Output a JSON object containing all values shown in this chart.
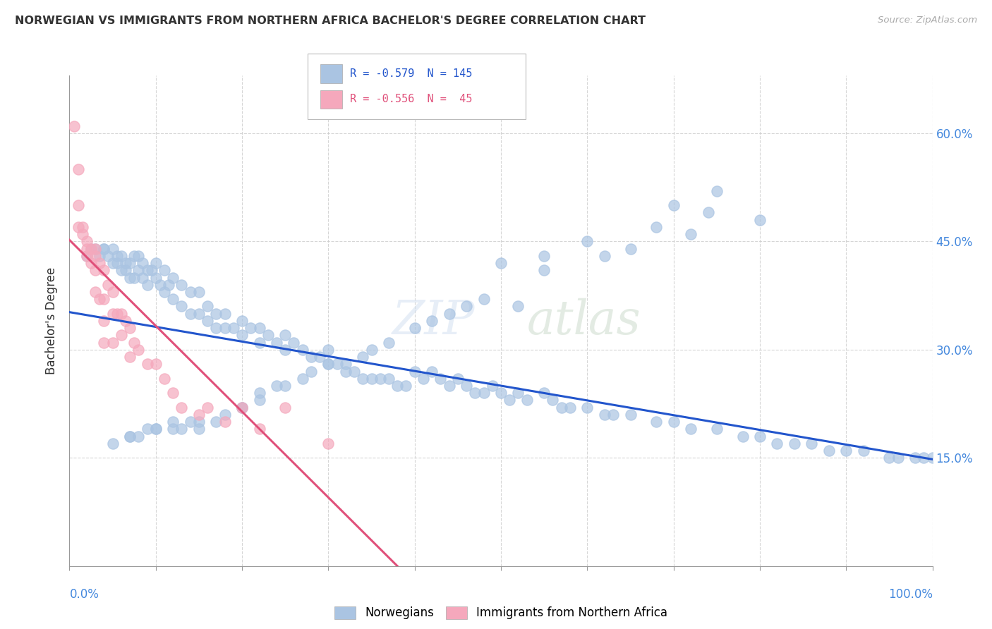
{
  "title": "NORWEGIAN VS IMMIGRANTS FROM NORTHERN AFRICA BACHELOR'S DEGREE CORRELATION CHART",
  "source": "Source: ZipAtlas.com",
  "ylabel": "Bachelor's Degree",
  "ytick_labels": [
    "15.0%",
    "30.0%",
    "45.0%",
    "60.0%"
  ],
  "ytick_values": [
    0.15,
    0.3,
    0.45,
    0.6
  ],
  "xlim": [
    0.0,
    1.0
  ],
  "ylim": [
    0.0,
    0.68
  ],
  "watermark": "ZIPatlas",
  "norwegian_color": "#aac4e2",
  "immigrant_color": "#f5a8bc",
  "norwegian_line_color": "#2255cc",
  "immigrant_line_color": "#e0507a",
  "norwegian_label": "Norwegians",
  "immigrant_label": "Immigrants from Northern Africa",
  "background_color": "#ffffff",
  "grid_color": "#cccccc",
  "title_color": "#333333",
  "axis_label_color": "#333333",
  "norwegian_points_x": [
    0.02,
    0.025,
    0.03,
    0.035,
    0.04,
    0.04,
    0.045,
    0.05,
    0.05,
    0.055,
    0.055,
    0.06,
    0.06,
    0.065,
    0.065,
    0.07,
    0.07,
    0.075,
    0.075,
    0.08,
    0.08,
    0.085,
    0.085,
    0.09,
    0.09,
    0.095,
    0.1,
    0.1,
    0.105,
    0.11,
    0.11,
    0.115,
    0.12,
    0.12,
    0.13,
    0.13,
    0.14,
    0.14,
    0.15,
    0.15,
    0.16,
    0.16,
    0.17,
    0.17,
    0.18,
    0.18,
    0.19,
    0.2,
    0.2,
    0.21,
    0.22,
    0.22,
    0.23,
    0.24,
    0.25,
    0.25,
    0.26,
    0.27,
    0.28,
    0.29,
    0.3,
    0.3,
    0.31,
    0.32,
    0.33,
    0.34,
    0.35,
    0.36,
    0.37,
    0.38,
    0.39,
    0.4,
    0.41,
    0.42,
    0.43,
    0.44,
    0.45,
    0.46,
    0.47,
    0.48,
    0.49,
    0.5,
    0.51,
    0.52,
    0.53,
    0.55,
    0.56,
    0.57,
    0.58,
    0.6,
    0.62,
    0.63,
    0.65,
    0.68,
    0.7,
    0.72,
    0.75,
    0.78,
    0.8,
    0.82,
    0.84,
    0.86,
    0.88,
    0.9,
    0.92,
    0.95,
    0.96,
    0.98,
    0.99,
    1.0,
    0.75,
    0.8,
    0.5,
    0.55,
    0.6,
    0.55,
    0.62,
    0.65,
    0.7,
    0.68,
    0.72,
    0.74,
    0.48,
    0.52,
    0.44,
    0.46,
    0.4,
    0.42,
    0.35,
    0.37,
    0.32,
    0.34,
    0.28,
    0.3,
    0.25,
    0.27,
    0.22,
    0.24,
    0.2,
    0.22,
    0.18,
    0.2,
    0.15,
    0.17,
    0.13,
    0.15,
    0.12,
    0.14,
    0.1,
    0.12,
    0.08,
    0.1,
    0.07,
    0.09,
    0.05,
    0.07
  ],
  "norwegian_points_y": [
    0.43,
    0.44,
    0.44,
    0.43,
    0.44,
    0.44,
    0.43,
    0.44,
    0.42,
    0.43,
    0.42,
    0.43,
    0.41,
    0.42,
    0.41,
    0.42,
    0.4,
    0.43,
    0.4,
    0.43,
    0.41,
    0.42,
    0.4,
    0.41,
    0.39,
    0.41,
    0.42,
    0.4,
    0.39,
    0.41,
    0.38,
    0.39,
    0.4,
    0.37,
    0.39,
    0.36,
    0.38,
    0.35,
    0.38,
    0.35,
    0.36,
    0.34,
    0.35,
    0.33,
    0.35,
    0.33,
    0.33,
    0.34,
    0.32,
    0.33,
    0.33,
    0.31,
    0.32,
    0.31,
    0.32,
    0.3,
    0.31,
    0.3,
    0.29,
    0.29,
    0.3,
    0.28,
    0.28,
    0.27,
    0.27,
    0.26,
    0.26,
    0.26,
    0.26,
    0.25,
    0.25,
    0.27,
    0.26,
    0.27,
    0.26,
    0.25,
    0.26,
    0.25,
    0.24,
    0.24,
    0.25,
    0.24,
    0.23,
    0.24,
    0.23,
    0.24,
    0.23,
    0.22,
    0.22,
    0.22,
    0.21,
    0.21,
    0.21,
    0.2,
    0.2,
    0.19,
    0.19,
    0.18,
    0.18,
    0.17,
    0.17,
    0.17,
    0.16,
    0.16,
    0.16,
    0.15,
    0.15,
    0.15,
    0.15,
    0.15,
    0.52,
    0.48,
    0.42,
    0.43,
    0.45,
    0.41,
    0.43,
    0.44,
    0.5,
    0.47,
    0.46,
    0.49,
    0.37,
    0.36,
    0.35,
    0.36,
    0.33,
    0.34,
    0.3,
    0.31,
    0.28,
    0.29,
    0.27,
    0.28,
    0.25,
    0.26,
    0.24,
    0.25,
    0.22,
    0.23,
    0.21,
    0.22,
    0.19,
    0.2,
    0.19,
    0.2,
    0.19,
    0.2,
    0.19,
    0.2,
    0.18,
    0.19,
    0.18,
    0.19,
    0.17,
    0.18
  ],
  "immigrant_points_x": [
    0.005,
    0.01,
    0.01,
    0.015,
    0.01,
    0.015,
    0.02,
    0.02,
    0.02,
    0.025,
    0.025,
    0.03,
    0.03,
    0.03,
    0.03,
    0.035,
    0.035,
    0.04,
    0.04,
    0.04,
    0.04,
    0.045,
    0.05,
    0.05,
    0.05,
    0.055,
    0.06,
    0.06,
    0.065,
    0.07,
    0.07,
    0.075,
    0.08,
    0.09,
    0.1,
    0.11,
    0.12,
    0.13,
    0.15,
    0.16,
    0.18,
    0.2,
    0.22,
    0.25,
    0.3
  ],
  "immigrant_points_y": [
    0.61,
    0.55,
    0.5,
    0.47,
    0.47,
    0.46,
    0.45,
    0.44,
    0.43,
    0.44,
    0.42,
    0.44,
    0.43,
    0.41,
    0.38,
    0.42,
    0.37,
    0.41,
    0.37,
    0.34,
    0.31,
    0.39,
    0.38,
    0.35,
    0.31,
    0.35,
    0.35,
    0.32,
    0.34,
    0.33,
    0.29,
    0.31,
    0.3,
    0.28,
    0.28,
    0.26,
    0.24,
    0.22,
    0.21,
    0.22,
    0.2,
    0.22,
    0.19,
    0.22,
    0.17
  ],
  "norwegian_trendline_x": [
    0.0,
    1.0
  ],
  "norwegian_trendline_y": [
    0.352,
    0.148
  ],
  "immigrant_trendline_x": [
    0.0,
    0.38
  ],
  "immigrant_trendline_y": [
    0.452,
    0.0
  ]
}
